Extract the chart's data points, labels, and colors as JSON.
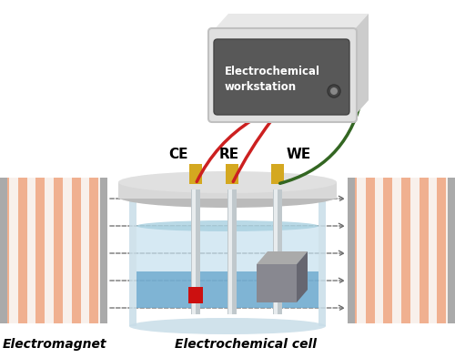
{
  "bg_color": "#ffffff",
  "figsize": [
    5.0,
    3.93
  ],
  "dpi": 100,
  "electromagnet_orange": "#f0b090",
  "electromagnet_cream": "#f8f0eb",
  "magnet_plate_color": "#aaaaaa",
  "cell_liquid_top": "#b8dce8",
  "cell_liquid_bottom": "#4090c8",
  "cell_wall_color": "#c8dde8",
  "lid_color": "#d8d8d8",
  "lid_top_color": "#e8e8e8",
  "electrode_silver": "#c0c8cc",
  "electrode_highlight": "#e8ecee",
  "electrode_yellow": "#d4a820",
  "wire_red": "#cc2020",
  "wire_green": "#336622",
  "wire_yellow": "#d4a820",
  "sample_red": "#cc1010",
  "cube_front": "#888890",
  "cube_top": "#aaaaaa",
  "cube_right": "#666670",
  "workstation_top": "#e0e0e0",
  "workstation_side": "#cccccc",
  "workstation_front": "#666666",
  "workstation_label_bg": "#555560",
  "workstation_text": "#ffffff",
  "arrow_color": "#666666",
  "label_electromagnet": "Electromagnet",
  "label_cell": "Electrochemical cell",
  "label_CE": "CE",
  "label_RE": "RE",
  "label_WE": "WE",
  "ws_label": "Electrochemical\nworkstation"
}
